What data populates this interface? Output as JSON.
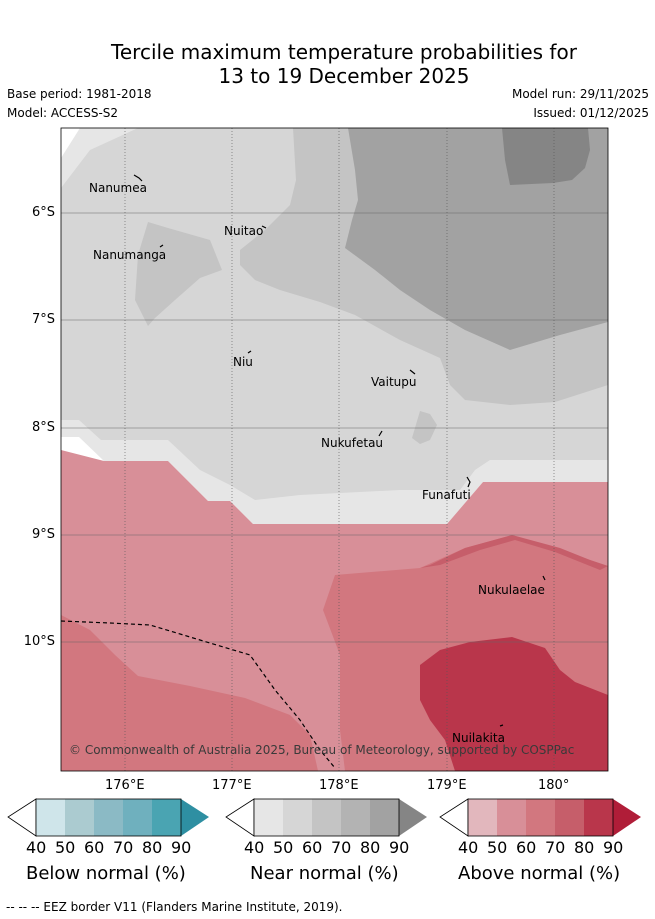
{
  "title_line1": "Tercile maximum temperature probabilities for",
  "title_line2": "13 to 19 December 2025",
  "base_period": "Base period: 1981-2018",
  "model": "Model: ACCESS-S2",
  "model_run": "Model run: 29/11/2025",
  "issued": "Issued: 01/12/2025",
  "copyright": "© Commonwealth of Australia 2025, Bureau of Meteorology, supported by COSPPac",
  "places": {
    "nanumea": "Nanumea",
    "nuitao": "Nuitao",
    "nanumanga": "Nanumanga",
    "niu": "Niu",
    "vaitupu": "Vaitupu",
    "nukufetau": "Nukufetau",
    "funafuti": "Funafuti",
    "nukulaelae": "Nukulaelae",
    "nuilakita": "Nuilakita"
  },
  "lat_labels": [
    "6°S",
    "7°S",
    "8°S",
    "9°S",
    "10°S"
  ],
  "lon_labels": [
    "176°E",
    "177°E",
    "178°E",
    "179°E",
    "180°"
  ],
  "colorbars": {
    "below": {
      "title": "Below normal (%)",
      "ticks": [
        "40",
        "50",
        "60",
        "70",
        "80",
        "90"
      ],
      "colors": [
        "#cfe5ea",
        "#abcbd0",
        "#8bbac5",
        "#6fb0be",
        "#4aa4b2",
        "#2e8fa2"
      ]
    },
    "near": {
      "title": "Near normal (%)",
      "ticks": [
        "40",
        "50",
        "60",
        "70",
        "80",
        "90"
      ],
      "colors": [
        "#e6e6e6",
        "#d6d6d6",
        "#c4c4c4",
        "#b3b3b3",
        "#a2a2a2",
        "#858585"
      ]
    },
    "above": {
      "title": "Above normal (%)",
      "ticks": [
        "40",
        "50",
        "60",
        "70",
        "80",
        "90"
      ],
      "colors": [
        "#e2b7bd",
        "#d88f98",
        "#d2777f",
        "#c65e6a",
        "#b9364b",
        "#b01d38"
      ]
    }
  },
  "footer": "--  --  -- EEZ border V11 (Flanders Marine Institute, 2019)."
}
